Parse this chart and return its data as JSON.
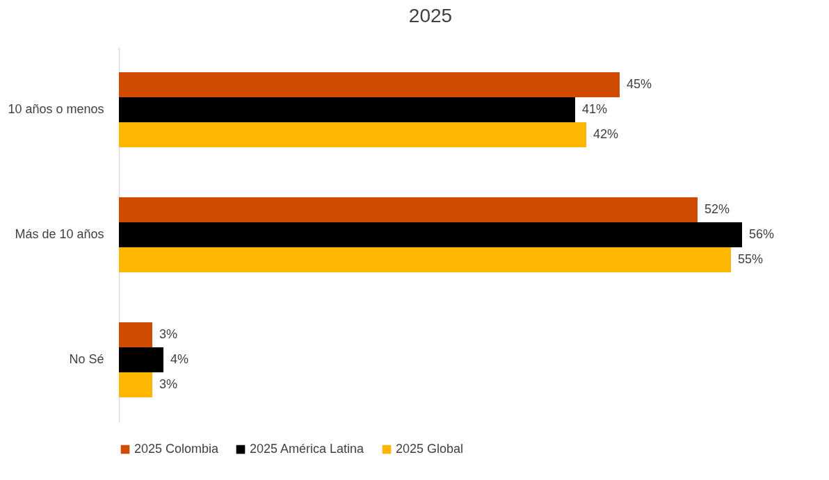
{
  "chart_data": {
    "type": "bar",
    "orientation": "horizontal",
    "title": "2025",
    "categories": [
      "10 años o menos",
      "Más de 10 años",
      "No Sé"
    ],
    "series": [
      {
        "name": "2025 Colombia",
        "color": "#d04a02",
        "values": [
          45,
          52,
          3
        ],
        "value_labels": [
          "45%",
          "52%",
          "3%"
        ]
      },
      {
        "name": "2025 América Latina",
        "color": "#000000",
        "values": [
          41,
          56,
          4
        ],
        "value_labels": [
          "41%",
          "56%",
          "4%"
        ]
      },
      {
        "name": "2025 Global",
        "color": "#ffb600",
        "values": [
          42,
          55,
          3
        ],
        "value_labels": [
          "42%",
          "55%",
          "3%"
        ]
      }
    ],
    "legend": "bottom"
  }
}
